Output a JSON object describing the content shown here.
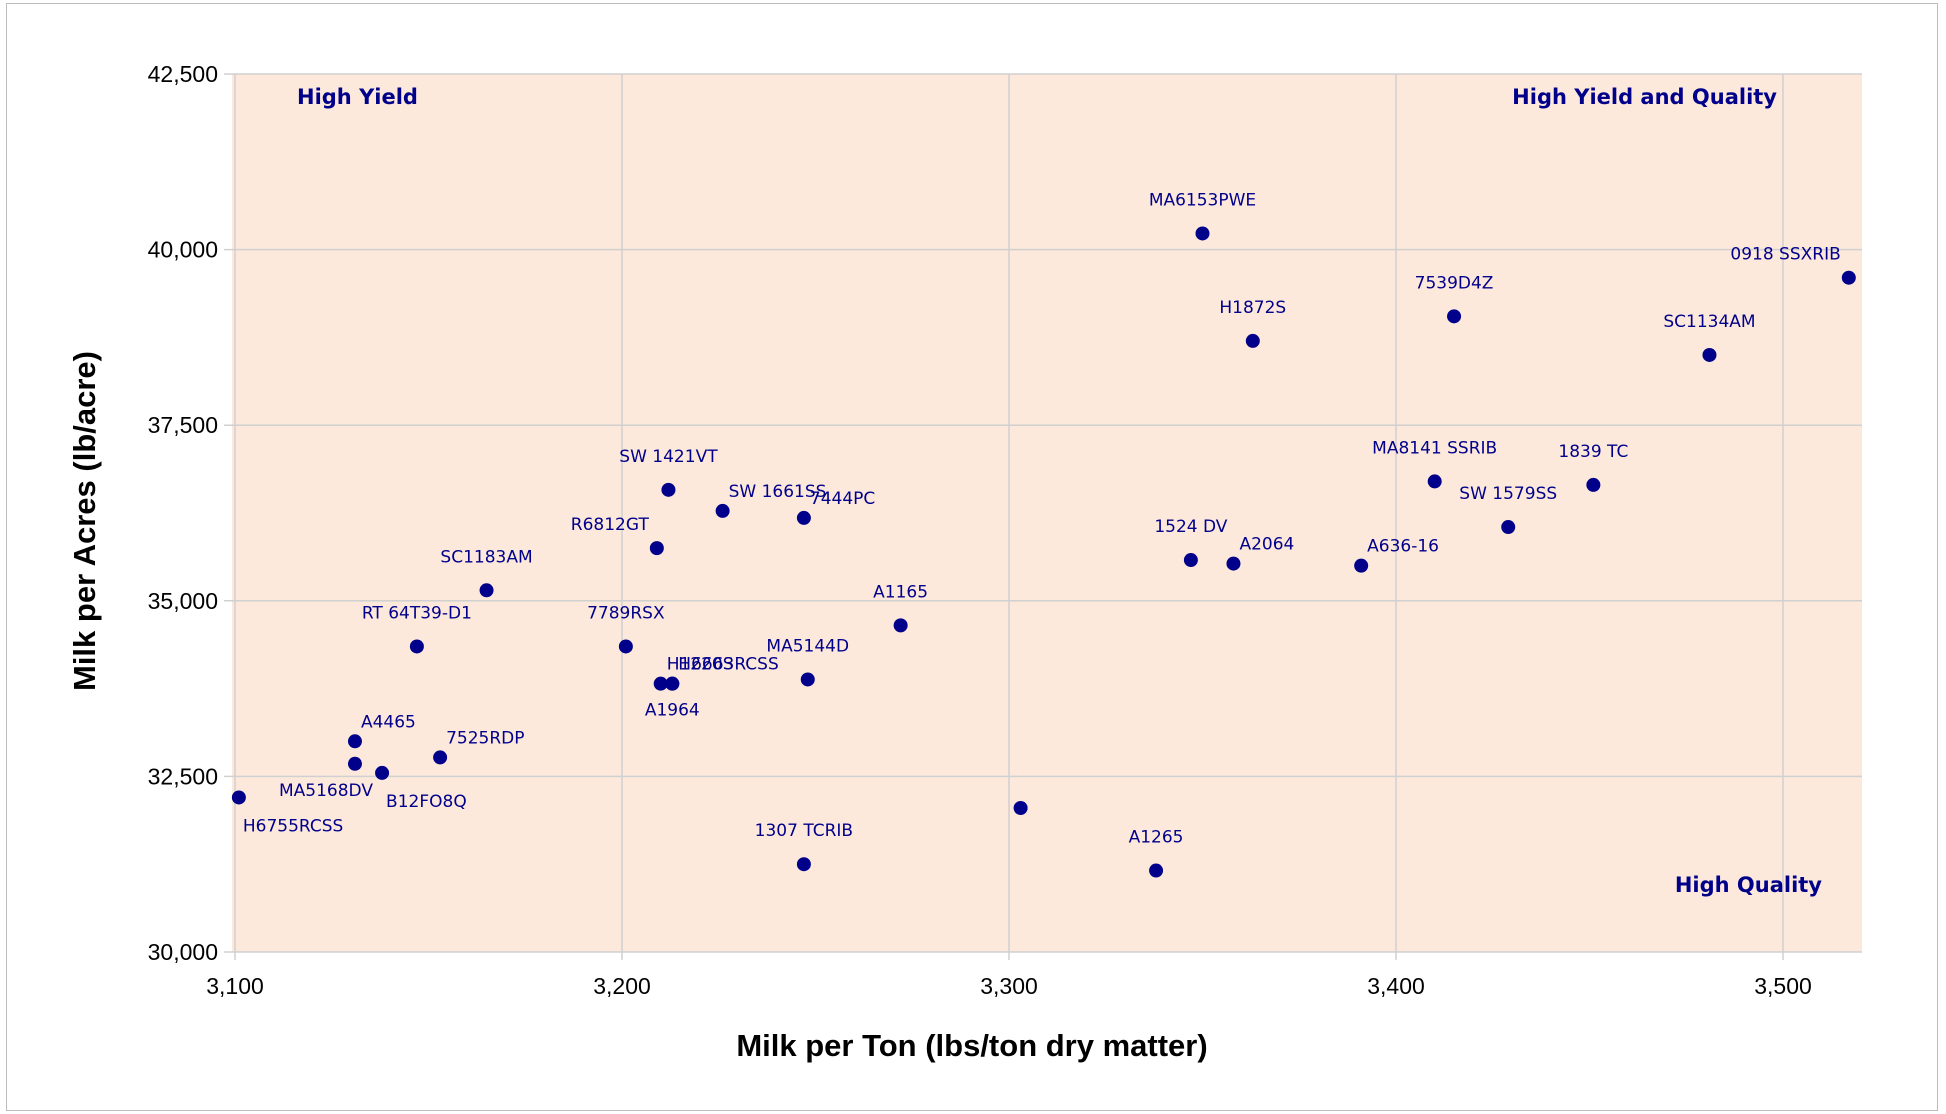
{
  "chart_data": {
    "type": "scatter",
    "title": "",
    "xlabel": "Milk per Ton (lbs/ton dry matter)",
    "ylabel": "Milk per Acres (lb/acre)",
    "xlim": [
      3100,
      3520
    ],
    "ylim": [
      30000,
      42500
    ],
    "x_ticks": [
      3100,
      3200,
      3300,
      3400,
      3500
    ],
    "y_ticks": [
      30000,
      32500,
      35000,
      37500,
      40000,
      42500
    ],
    "x_tick_labels": [
      "3,100",
      "3,200",
      "3,300",
      "3,400",
      "3,500"
    ],
    "y_tick_labels": [
      "30,000",
      "32,500",
      "35,000",
      "37,500",
      "40,000",
      "42,500"
    ],
    "grid": true,
    "plot_background_color": "#fce9dc",
    "point_color": "#00008b",
    "grid_color": "#d0d0d0",
    "quadrant_labels": [
      {
        "text": "High Yield",
        "anchor": "top-left"
      },
      {
        "text": "High Yield and Quality",
        "anchor": "top-right"
      },
      {
        "text": "High Quality",
        "anchor": "bottom-right"
      }
    ],
    "points": [
      {
        "label": "MA6153PWE",
        "x": 3350,
        "y": 40230,
        "pos": "above"
      },
      {
        "label": "0918 SSXRIB",
        "x": 3517,
        "y": 39600,
        "pos": "above-left"
      },
      {
        "label": "7539D4Z",
        "x": 3415,
        "y": 39050,
        "pos": "above"
      },
      {
        "label": "H1872S",
        "x": 3363,
        "y": 38700,
        "pos": "above"
      },
      {
        "label": "SC1134AM",
        "x": 3481,
        "y": 38500,
        "pos": "above"
      },
      {
        "label": "MA8141 SSRIB",
        "x": 3410,
        "y": 36700,
        "pos": "above"
      },
      {
        "label": "1839 TC",
        "x": 3451,
        "y": 36650,
        "pos": "above"
      },
      {
        "label": "SW 1579SS",
        "x": 3429,
        "y": 36050,
        "pos": "above"
      },
      {
        "label": "1524 DV",
        "x": 3347,
        "y": 35580,
        "pos": "above"
      },
      {
        "label": "A2064",
        "x": 3358,
        "y": 35530,
        "pos": "above-right"
      },
      {
        "label": "A636-16",
        "x": 3391,
        "y": 35500,
        "pos": "above-right"
      },
      {
        "label": "SW 1421VT",
        "x": 3212,
        "y": 36580,
        "pos": "above"
      },
      {
        "label": "SW 1661SS",
        "x": 3226,
        "y": 36280,
        "pos": "above-right"
      },
      {
        "label": "7444PC",
        "x": 3247,
        "y": 36180,
        "pos": "above-right"
      },
      {
        "label": "R6812GT",
        "x": 3209,
        "y": 35750,
        "pos": "above-left"
      },
      {
        "label": "SC1183AM",
        "x": 3165,
        "y": 35150,
        "pos": "above"
      },
      {
        "label": "A1165",
        "x": 3272,
        "y": 34650,
        "pos": "above"
      },
      {
        "label": "RT 64T39-D1",
        "x": 3147,
        "y": 34350,
        "pos": "above"
      },
      {
        "label": "7789RSX",
        "x": 3201,
        "y": 34350,
        "pos": "above"
      },
      {
        "label": "H1220S",
        "x": 3210,
        "y": 33820,
        "pos": "above-right"
      },
      {
        "label": "H6663RCSS",
        "x": 3213,
        "y": 33820,
        "pos": "above-right"
      },
      {
        "label": "A1964",
        "x": 3213,
        "y": 33820,
        "pos": "below"
      },
      {
        "label": "MA5144D",
        "x": 3248,
        "y": 33880,
        "pos": "above"
      },
      {
        "label": "A4465",
        "x": 3131,
        "y": 33000,
        "pos": "above-right"
      },
      {
        "label": "7525RDP",
        "x": 3153,
        "y": 32770,
        "pos": "above-right"
      },
      {
        "label": "MA5168DV",
        "x": 3131,
        "y": 32680,
        "pos": "below-left"
      },
      {
        "label": "B12FO8Q",
        "x": 3138,
        "y": 32550,
        "pos": "below-right"
      },
      {
        "label": "H6755RCSS",
        "x": 3101,
        "y": 32200,
        "pos": "below-right"
      },
      {
        "label": "",
        "x": 3303,
        "y": 32050,
        "pos": "none"
      },
      {
        "label": "1307 TCRIB",
        "x": 3247,
        "y": 31250,
        "pos": "above"
      },
      {
        "label": "A1265",
        "x": 3338,
        "y": 31160,
        "pos": "above"
      }
    ]
  }
}
